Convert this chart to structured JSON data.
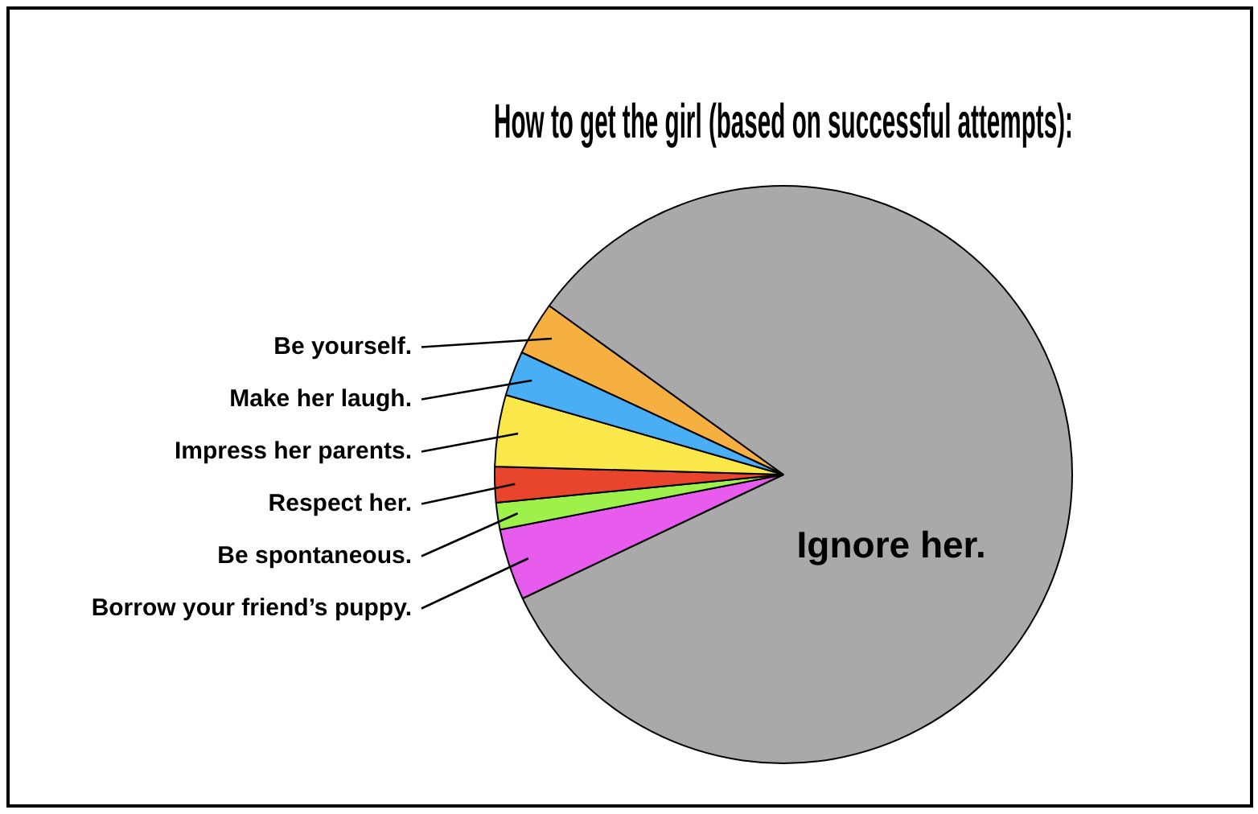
{
  "chart_data": {
    "type": "pie",
    "title": "How to get the girl (based on successful attempts):",
    "categories": [
      "Be yourself.",
      "Ignore her.",
      "Borrow your friend’s puppy.",
      "Be spontaneous.",
      "Respect her.",
      "Impress her parents.",
      "Make her laugh."
    ],
    "values": [
      3,
      83,
      4,
      1.5,
      2,
      4,
      2.5
    ],
    "colors": [
      "#f5b041",
      "#a9a9a9",
      "#e85ced",
      "#9ef04a",
      "#e8452c",
      "#fae84b",
      "#4aaef5"
    ],
    "legend": false
  }
}
